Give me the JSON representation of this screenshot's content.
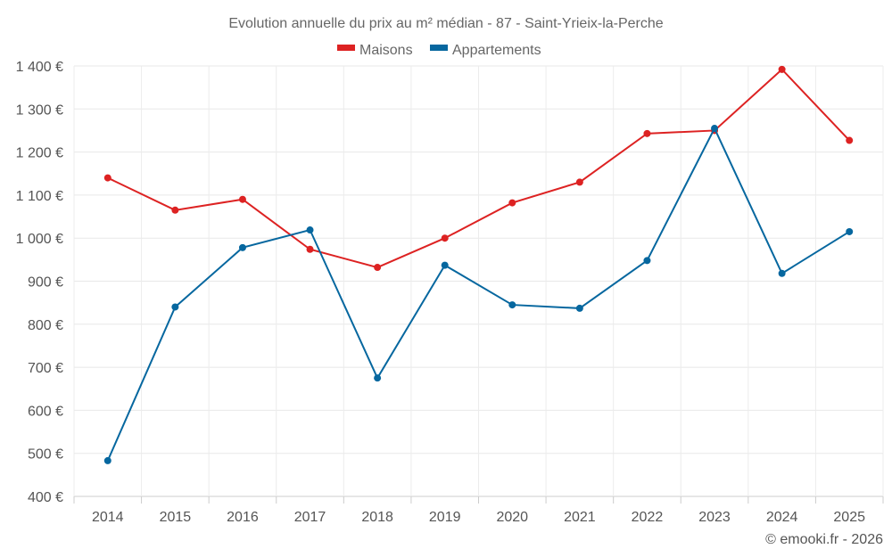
{
  "chart_data": {
    "type": "line",
    "title": "Evolution annuelle du prix au m² médian - 87 - Saint-Yrieix-la-Perche",
    "xlabel": "",
    "ylabel": "",
    "categories": [
      "2014",
      "2015",
      "2016",
      "2017",
      "2018",
      "2019",
      "2020",
      "2021",
      "2022",
      "2023",
      "2024",
      "2025"
    ],
    "ylim": [
      400,
      1400
    ],
    "yticks": [
      400,
      500,
      600,
      700,
      800,
      900,
      1000,
      1100,
      1200,
      1300,
      1400
    ],
    "ytick_labels": [
      "400 €",
      "500 €",
      "600 €",
      "700 €",
      "800 €",
      "900 €",
      "1 000 €",
      "1 100 €",
      "1 200 €",
      "1 300 €",
      "1 400 €"
    ],
    "grid": true,
    "legend_position": "top-center",
    "series": [
      {
        "name": "Maisons",
        "color": "#dd2222",
        "values": [
          1140,
          1065,
          1090,
          974,
          932,
          1000,
          1082,
          1130,
          1243,
          1250,
          1392,
          1227
        ]
      },
      {
        "name": "Appartements",
        "color": "#06679f",
        "values": [
          483,
          840,
          978,
          1019,
          675,
          937,
          845,
          837,
          948,
          1255,
          918,
          1015
        ]
      }
    ],
    "credit": "© emooki.fr - 2026"
  }
}
